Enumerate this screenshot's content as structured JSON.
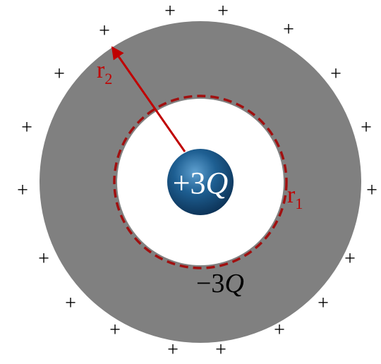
{
  "diagram": {
    "outer_charge_sign": "+",
    "center_charge": {
      "amount": "+3",
      "symbol": "Q"
    },
    "shell_inner_charge": {
      "amount": "−3",
      "symbol": "Q"
    },
    "outer_radius_label": {
      "main": "r",
      "sub": "2"
    },
    "inner_radius_label": {
      "main": "r",
      "sub": "1"
    }
  }
}
